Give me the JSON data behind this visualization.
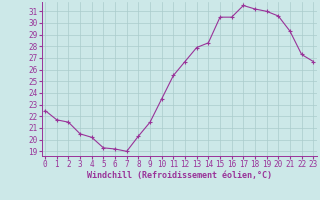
{
  "x": [
    0,
    1,
    2,
    3,
    4,
    5,
    6,
    7,
    8,
    9,
    10,
    11,
    12,
    13,
    14,
    15,
    16,
    17,
    18,
    19,
    20,
    21,
    22,
    23
  ],
  "y": [
    22.5,
    21.7,
    21.5,
    20.5,
    20.2,
    19.3,
    19.2,
    19.0,
    20.3,
    21.5,
    23.5,
    25.5,
    26.7,
    27.9,
    28.3,
    30.5,
    30.5,
    31.5,
    31.2,
    31.0,
    30.6,
    29.3,
    27.3,
    26.7
  ],
  "line_color": "#993399",
  "marker": "+",
  "marker_size": 3,
  "marker_lw": 0.8,
  "bg_color": "#cce8e8",
  "grid_color": "#aacccc",
  "xlabel": "Windchill (Refroidissement éolien,°C)",
  "ylabel_ticks": [
    19,
    20,
    21,
    22,
    23,
    24,
    25,
    26,
    27,
    28,
    29,
    30,
    31
  ],
  "xtick_labels": [
    "0",
    "1",
    "2",
    "3",
    "4",
    "5",
    "6",
    "7",
    "8",
    "9",
    "10",
    "11",
    "12",
    "13",
    "14",
    "15",
    "16",
    "17",
    "18",
    "19",
    "20",
    "21",
    "22",
    "23"
  ],
  "xlim": [
    -0.3,
    23.3
  ],
  "ylim": [
    18.6,
    31.8
  ],
  "tick_fontsize": 5.5,
  "xlabel_fontsize": 6.0,
  "linewidth": 0.8
}
